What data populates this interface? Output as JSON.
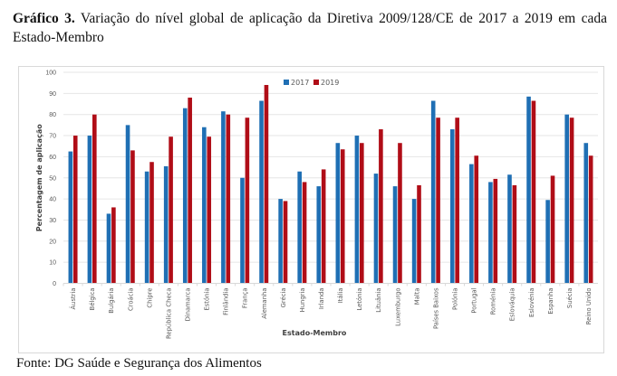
{
  "caption": {
    "label": "Gráfico 3.",
    "text": " Variação do nível global de aplicação da Diretiva 2009/128/CE de 2017 a 2019 em cada Estado-Membro"
  },
  "source": "Fonte: DG Saúde e Segurança dos Alimentos",
  "colors": {
    "s2017": "#1f6fb4",
    "s2019": "#b00d17",
    "grid": "#e6e6e6"
  },
  "chart_data": {
    "type": "bar",
    "title": "Variação do nível global de aplicação da Diretiva 2009/128/CE de 2017 a 2019 em cada Estado-Membro",
    "xlabel": "Estado-Membro",
    "ylabel": "Percentagem de aplicação",
    "ylim": [
      0,
      100
    ],
    "yticks": [
      0,
      10,
      20,
      30,
      40,
      50,
      60,
      70,
      80,
      90,
      100
    ],
    "grid": true,
    "legend_position": "top-center",
    "categories": [
      "Áustria",
      "Bélgica",
      "Bulgária",
      "Croácia",
      "Chipre",
      "República Checa",
      "Dinamarca",
      "Estónia",
      "Finlândia",
      "França",
      "Alemanha",
      "Grécia",
      "Hungria",
      "Irlanda",
      "Itália",
      "Letónia",
      "Lituânia",
      "Luxemburgo",
      "Malta",
      "Países Baixos",
      "Polónia",
      "Portugal",
      "Roménia",
      "Eslováquia",
      "Eslovénia",
      "Espanha",
      "Suécia",
      "Reino Unido"
    ],
    "series": [
      {
        "name": "2017",
        "values": [
          62.5,
          70,
          33,
          75,
          53,
          55.5,
          83,
          74,
          81.5,
          50,
          86.5,
          40,
          53,
          46,
          66.5,
          70,
          52,
          46,
          40,
          86.5,
          73,
          56.5,
          48,
          51.5,
          88.5,
          39.5,
          80,
          66.5
        ]
      },
      {
        "name": "2019",
        "values": [
          70,
          80,
          36,
          63,
          57.5,
          69.5,
          88,
          69.5,
          80,
          78.5,
          94,
          39,
          48,
          54,
          63.5,
          66.5,
          73,
          66.5,
          46.5,
          78.5,
          78.5,
          60.5,
          49.5,
          46.5,
          86.5,
          51,
          78.5,
          60.5
        ]
      }
    ]
  }
}
